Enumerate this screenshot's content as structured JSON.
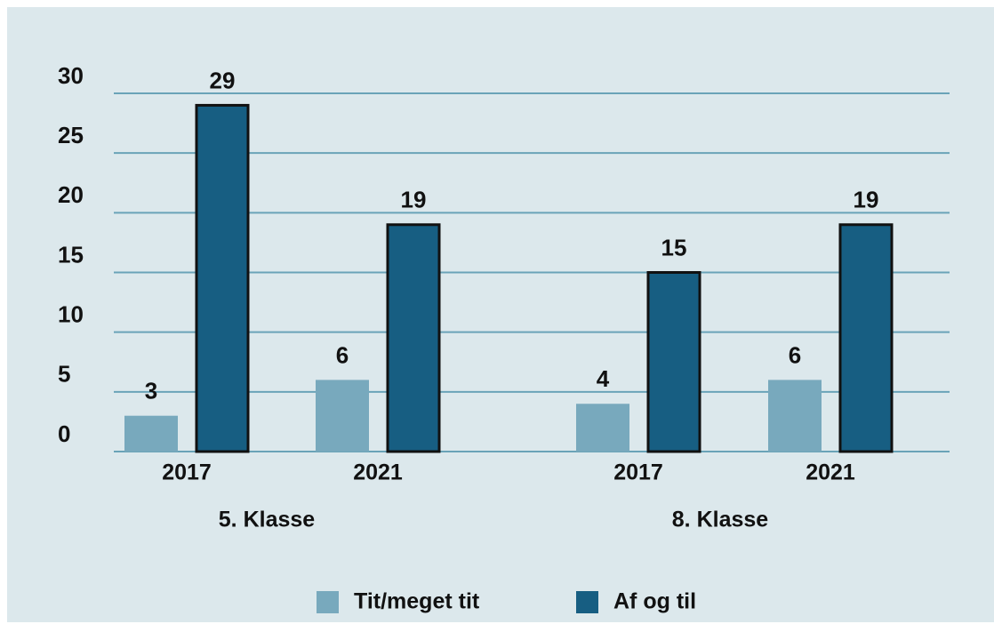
{
  "chart_data": {
    "type": "bar",
    "categories": [
      "2017",
      "2021",
      "2017",
      "2021"
    ],
    "group_labels": [
      "5. Klasse",
      "8. Klasse"
    ],
    "series": [
      {
        "name": "Tit/meget tit",
        "color": "#78a9bd",
        "values": [
          3,
          6,
          4,
          6
        ]
      },
      {
        "name": "Af og til",
        "color": "#175e82",
        "values": [
          29,
          19,
          15,
          19
        ]
      }
    ],
    "ylim": [
      0,
      30
    ],
    "yticks": [
      0,
      5,
      10,
      15,
      20,
      25,
      30
    ],
    "grid": true,
    "legend": "bottom"
  }
}
